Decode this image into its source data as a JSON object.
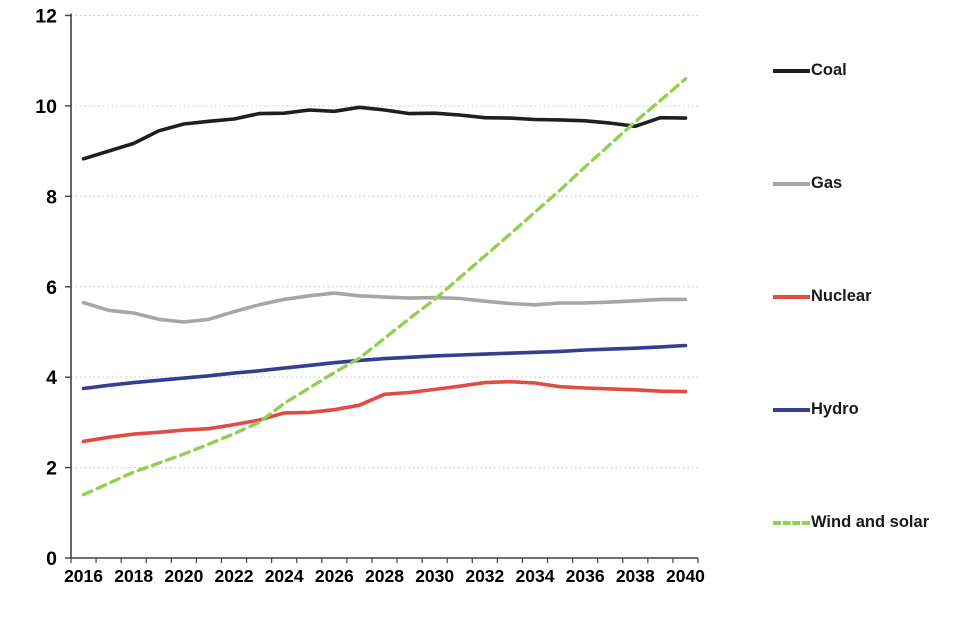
{
  "chart_data": {
    "type": "line",
    "title": "",
    "xlabel": "",
    "ylabel": "",
    "x": [
      2016,
      2017,
      2018,
      2019,
      2020,
      2021,
      2022,
      2023,
      2024,
      2025,
      2026,
      2027,
      2028,
      2029,
      2030,
      2031,
      2032,
      2033,
      2034,
      2035,
      2036,
      2037,
      2038,
      2039,
      2040
    ],
    "x_tick_labels": [
      "2016",
      "2018",
      "2020",
      "2022",
      "2024",
      "2026",
      "2028",
      "2030",
      "2032",
      "2034",
      "2036",
      "2038",
      "2040"
    ],
    "y_ticks": [
      0,
      2,
      4,
      6,
      8,
      10,
      12
    ],
    "ylim": [
      0,
      12
    ],
    "grid": "horizontal-dotted",
    "legend_position": "right",
    "axis_color": "#404040",
    "gridline_color": "#bfbfbf",
    "tick_label_color": "#000000",
    "series": [
      {
        "name": "Coal",
        "color": "#1f1f1f",
        "dash": false,
        "values": [
          8.83,
          9.0,
          9.17,
          9.45,
          9.6,
          9.66,
          9.71,
          9.83,
          9.84,
          9.91,
          9.88,
          9.97,
          9.91,
          9.83,
          9.84,
          9.8,
          9.74,
          9.73,
          9.7,
          9.69,
          9.67,
          9.62,
          9.55,
          9.74,
          9.73
        ]
      },
      {
        "name": "Gas",
        "color": "#a6a6a6",
        "dash": false,
        "values": [
          5.65,
          5.48,
          5.42,
          5.28,
          5.22,
          5.28,
          5.45,
          5.6,
          5.72,
          5.8,
          5.86,
          5.8,
          5.77,
          5.75,
          5.76,
          5.74,
          5.68,
          5.63,
          5.6,
          5.64,
          5.64,
          5.66,
          5.69,
          5.72,
          5.72
        ]
      },
      {
        "name": "Nuclear",
        "color": "#e04b44",
        "dash": false,
        "values": [
          2.58,
          2.67,
          2.74,
          2.78,
          2.83,
          2.86,
          2.95,
          3.05,
          3.21,
          3.22,
          3.28,
          3.38,
          3.62,
          3.66,
          3.73,
          3.8,
          3.88,
          3.9,
          3.87,
          3.79,
          3.76,
          3.74,
          3.72,
          3.69,
          3.68
        ]
      },
      {
        "name": "Hydro",
        "color": "#333f8f",
        "dash": false,
        "values": [
          3.75,
          3.82,
          3.88,
          3.93,
          3.98,
          4.03,
          4.09,
          4.14,
          4.2,
          4.26,
          4.32,
          4.37,
          4.41,
          4.44,
          4.47,
          4.49,
          4.51,
          4.53,
          4.55,
          4.57,
          4.6,
          4.62,
          4.64,
          4.67,
          4.7
        ]
      },
      {
        "name": "Wind and solar",
        "color": "#92d050",
        "dash": true,
        "values": [
          1.4,
          1.65,
          1.9,
          2.1,
          2.3,
          2.52,
          2.75,
          3.0,
          3.42,
          3.76,
          4.1,
          4.42,
          4.86,
          5.3,
          5.72,
          6.2,
          6.68,
          7.16,
          7.65,
          8.14,
          8.65,
          9.15,
          9.65,
          10.12,
          10.6
        ]
      }
    ]
  },
  "legend": {
    "item_centers_y": [
      72,
      185,
      298,
      411,
      524
    ]
  }
}
